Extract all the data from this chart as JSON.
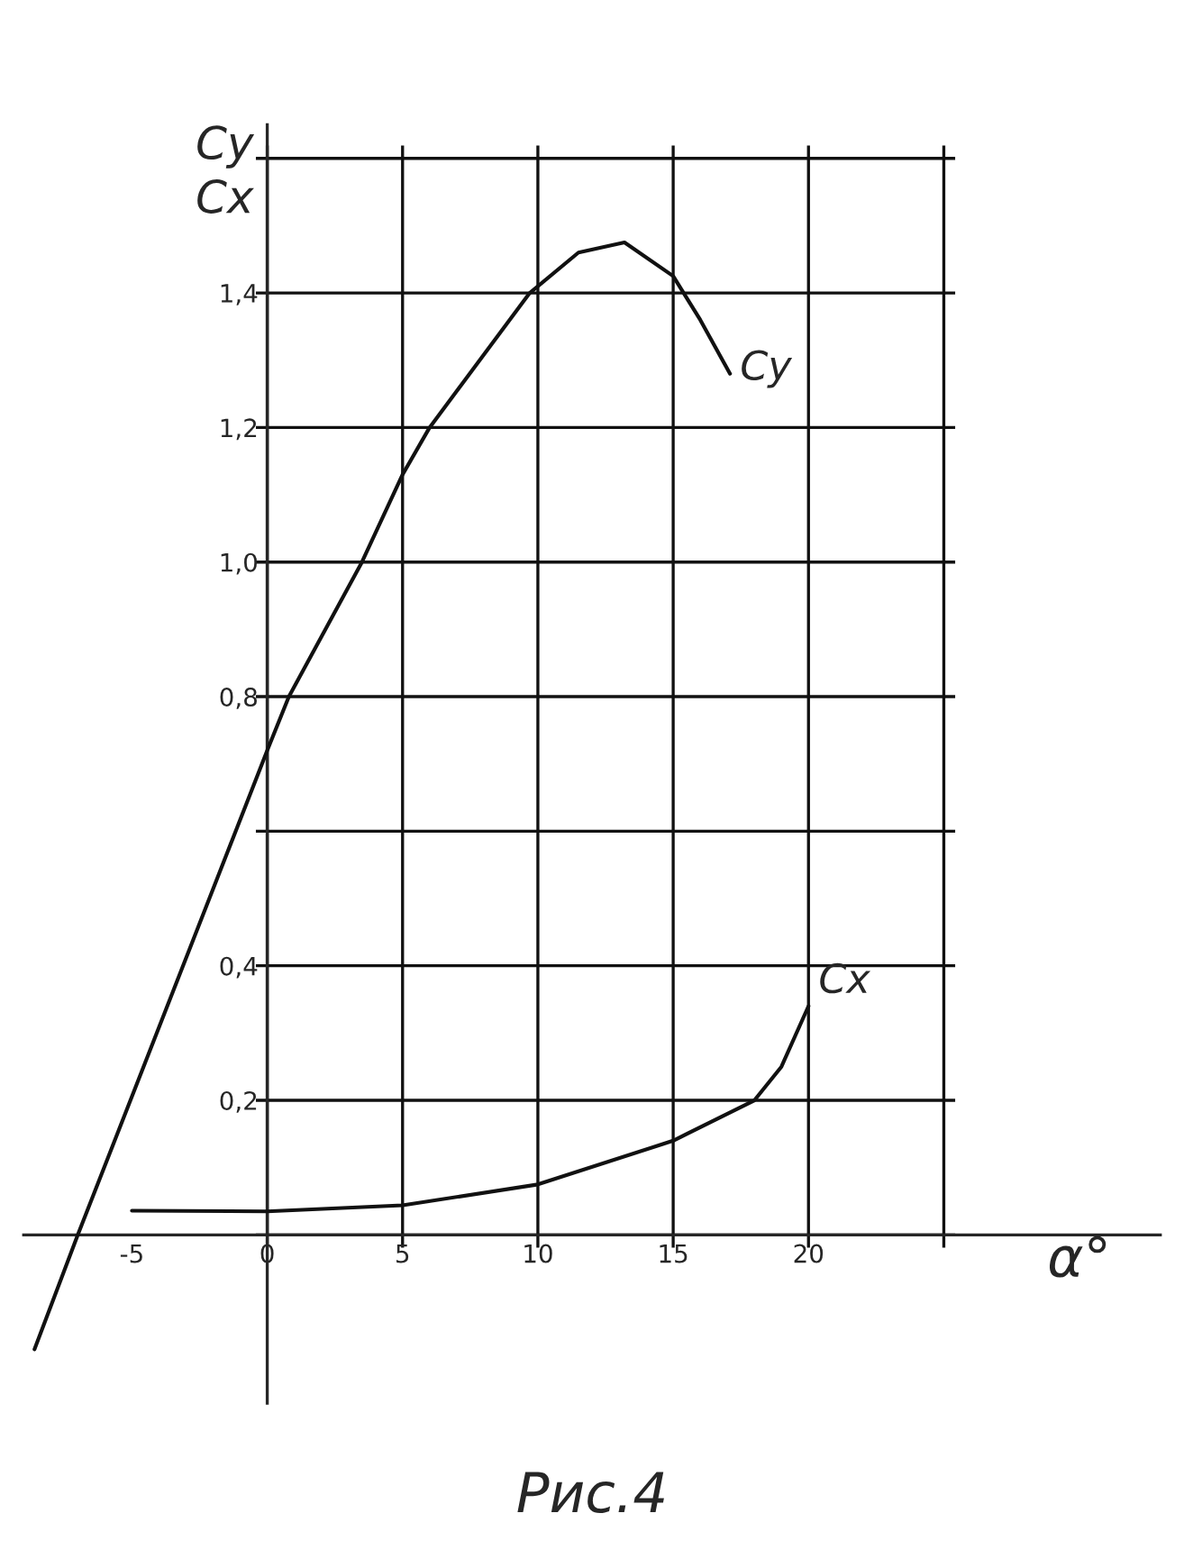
{
  "chart_data": {
    "type": "line",
    "xlabel": "α°",
    "ylabel": "Cy\nCx",
    "annotations": [
      "Рис.4"
    ],
    "series": [
      {
        "name": "Cy",
        "color": "#111111",
        "x": [
          -8.6,
          -7.0,
          0,
          0.8,
          3.5,
          5,
          6,
          9.7,
          11.5,
          13.2,
          15,
          16,
          17.1
        ],
        "values": [
          -0.17,
          0,
          0.72,
          0.8,
          1.0,
          1.13,
          1.2,
          1.4,
          1.46,
          1.475,
          1.425,
          1.36,
          1.28
        ]
      },
      {
        "name": "Cx",
        "color": "#111111",
        "x": [
          -5,
          0,
          5,
          10,
          15,
          18,
          19,
          20
        ],
        "values": [
          0.036,
          0.035,
          0.044,
          0.075,
          0.14,
          0.2,
          0.25,
          0.34
        ]
      }
    ],
    "xlim": [
      -9,
      33
    ],
    "ylim": [
      -0.25,
      1.65
    ],
    "xticks": [
      -5,
      0,
      5,
      10,
      15,
      20,
      {
        "value": 25,
        "label": null
      }
    ],
    "yticks": [
      {
        "value": 0,
        "label": null
      },
      {
        "value": 0.2,
        "label": "0,2"
      },
      {
        "value": 0.4,
        "label": "0,4"
      },
      {
        "value": 0.6,
        "label": null
      },
      {
        "value": 0.8,
        "label": "0,8"
      },
      {
        "value": 1.0,
        "label": "1,0"
      },
      {
        "value": 1.2,
        "label": "1,2"
      },
      {
        "value": 1.4,
        "label": "1,4"
      },
      {
        "value": 1.6,
        "label": null
      }
    ],
    "grid": true
  }
}
